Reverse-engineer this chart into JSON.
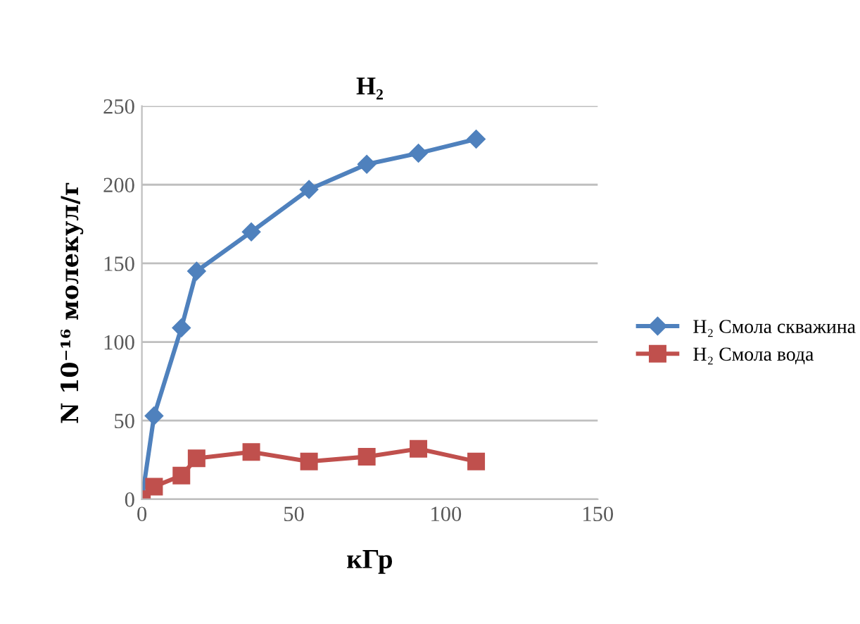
{
  "chart_data": {
    "type": "line",
    "title": "H₂",
    "xlabel": "кГр",
    "ylabel": "N 10⁻¹⁶ молекул/г",
    "xlim": [
      0,
      150
    ],
    "xticks": [
      0,
      50,
      100,
      150
    ],
    "ylim": [
      0,
      250
    ],
    "yticks": [
      0,
      50,
      100,
      150,
      200,
      250
    ],
    "grid": "y",
    "legend": "right",
    "series": [
      {
        "name": "H₂ Смола скважина",
        "color": "#4f81bd",
        "marker": "diamond",
        "x": [
          0,
          4,
          13,
          18,
          36,
          55,
          74,
          91,
          110
        ],
        "values": [
          0,
          53,
          109,
          145,
          170,
          197,
          213,
          220,
          229
        ]
      },
      {
        "name": "H₂ Смола вода",
        "color": "#c0504d",
        "marker": "square",
        "x": [
          0,
          4,
          13,
          18,
          36,
          55,
          74,
          91,
          110
        ],
        "values": [
          0,
          8,
          15,
          26,
          30,
          24,
          27,
          32,
          24
        ]
      }
    ]
  }
}
